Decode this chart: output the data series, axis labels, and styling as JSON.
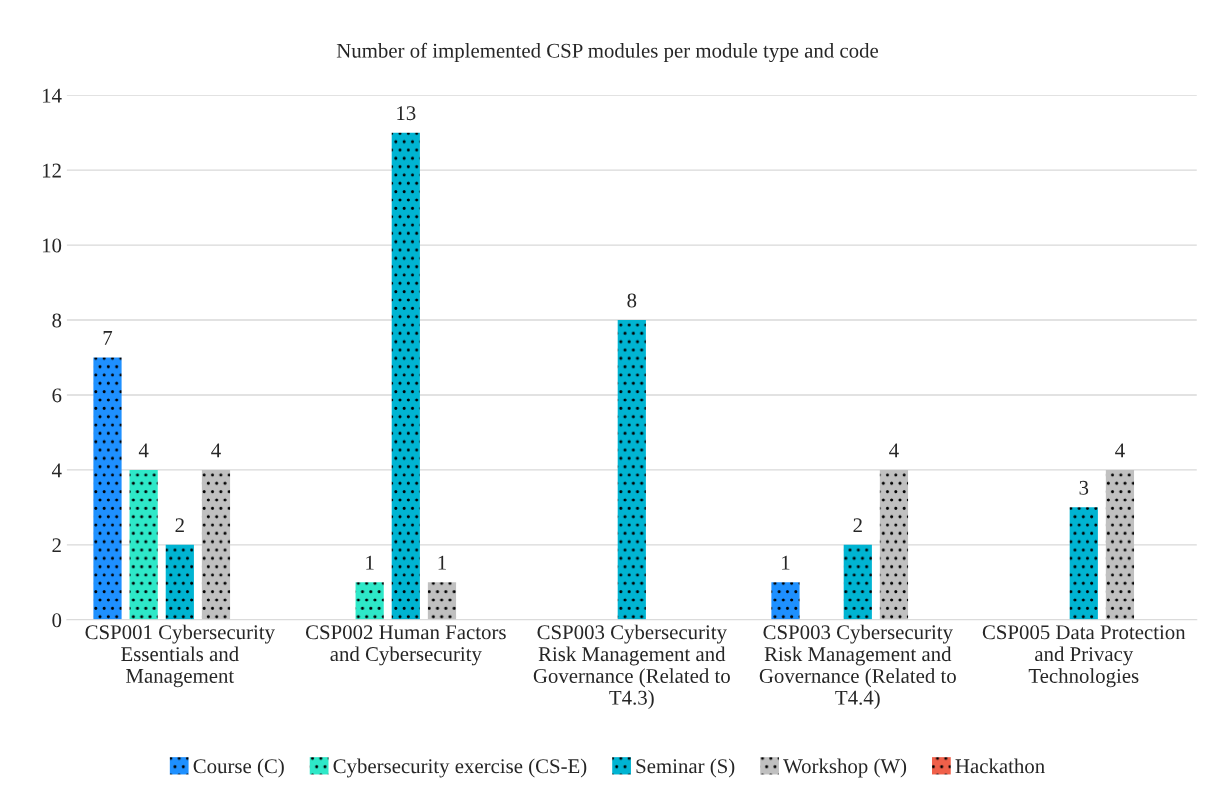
{
  "chart_data": {
    "type": "bar",
    "title": "Number of implemented CSP modules per module type and code",
    "categories": [
      "CSP001 Cybersecurity Essentials and Management",
      "CSP002 Human Factors and Cybersecurity",
      "CSP003 Cybersecurity Risk Management and Governance (Related to T4.3)",
      "CSP003 Cybersecurity Risk Management and Governance (Related to T4.4)",
      "CSP005 Data Protection and Privacy Technologies"
    ],
    "series": [
      {
        "name": "Course (C)",
        "color": "#1e90ff",
        "values": [
          7,
          null,
          null,
          1,
          null
        ]
      },
      {
        "name": "Cybersecurity exercise (CS-E)",
        "color": "#2ee8c8",
        "values": [
          4,
          1,
          null,
          null,
          null
        ]
      },
      {
        "name": "Seminar (S)",
        "color": "#00b4d2",
        "values": [
          2,
          13,
          8,
          2,
          3
        ]
      },
      {
        "name": "Workshop (W)",
        "color": "#c0c0c0",
        "values": [
          4,
          1,
          null,
          4,
          4
        ]
      },
      {
        "name": "Hackathon",
        "color": "#f0604a",
        "values": [
          null,
          null,
          null,
          null,
          null
        ]
      }
    ],
    "ylim": [
      0,
      14
    ],
    "yticks": [
      0,
      2,
      4,
      6,
      8,
      10,
      12,
      14
    ],
    "grid": "y",
    "legend": "bottom",
    "data_labels": true
  }
}
